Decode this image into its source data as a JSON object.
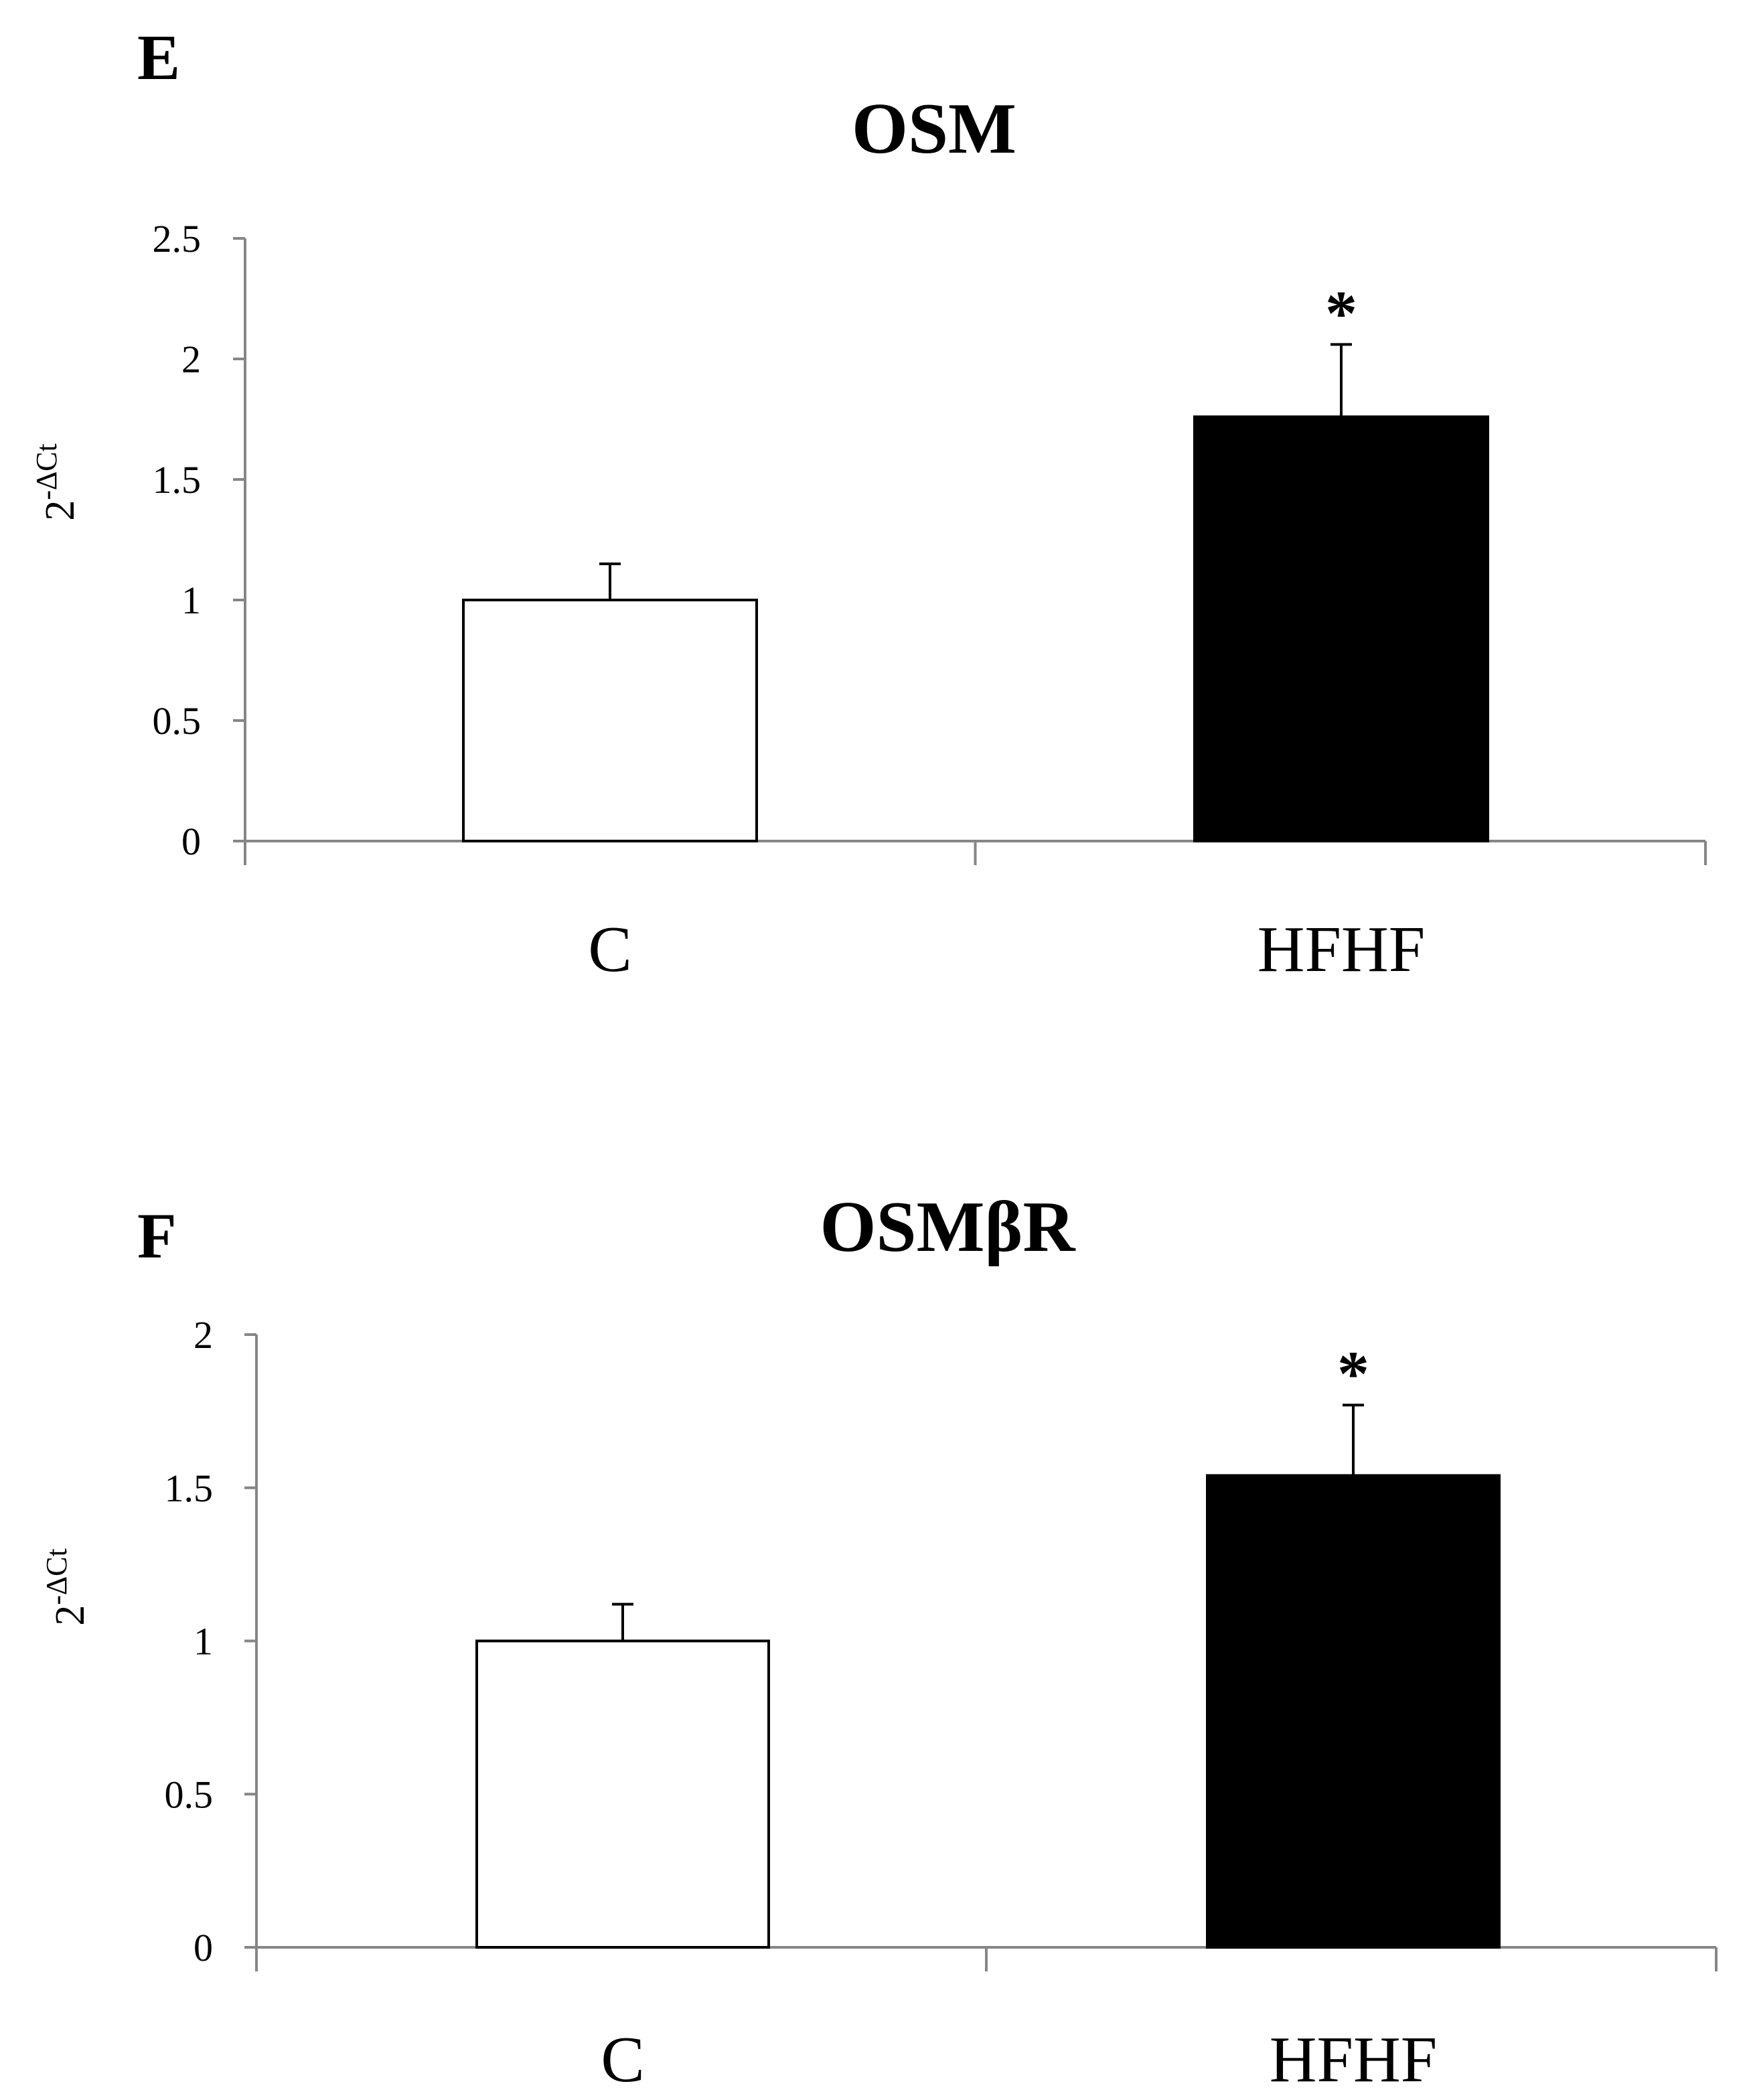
{
  "chart_data": [
    {
      "type": "bar",
      "panel_label": "E",
      "title": "OSM",
      "ylabel_base": "2",
      "ylabel_superscript": "-ΔCt",
      "xlabel": "",
      "categories": [
        "C",
        "HFHF"
      ],
      "values": [
        1.0,
        1.76
      ],
      "error_upper": [
        0.15,
        0.3
      ],
      "bar_colors": [
        "#ffffff",
        "#000000"
      ],
      "significance": [
        "",
        "*"
      ],
      "ylim": [
        0,
        2.5
      ],
      "yticks": [
        0,
        0.5,
        1,
        1.5,
        2,
        2.5
      ],
      "ytick_labels": [
        "0",
        "0.5",
        "1",
        "1.5",
        "2",
        "2.5"
      ],
      "grid": false,
      "legend": "none"
    },
    {
      "type": "bar",
      "panel_label": "F",
      "title": "OSMβR",
      "ylabel_base": "2",
      "ylabel_superscript": "-ΔCt",
      "xlabel": "",
      "categories": [
        "C",
        "HFHF"
      ],
      "values": [
        1.0,
        1.54
      ],
      "error_upper": [
        0.12,
        0.23
      ],
      "bar_colors": [
        "#ffffff",
        "#000000"
      ],
      "significance": [
        "",
        "*"
      ],
      "ylim": [
        0,
        2
      ],
      "yticks": [
        0,
        0.5,
        1,
        1.5,
        2
      ],
      "ytick_labels": [
        "0",
        "0.5",
        "1",
        "1.5",
        "2"
      ],
      "grid": false,
      "legend": "none"
    }
  ]
}
